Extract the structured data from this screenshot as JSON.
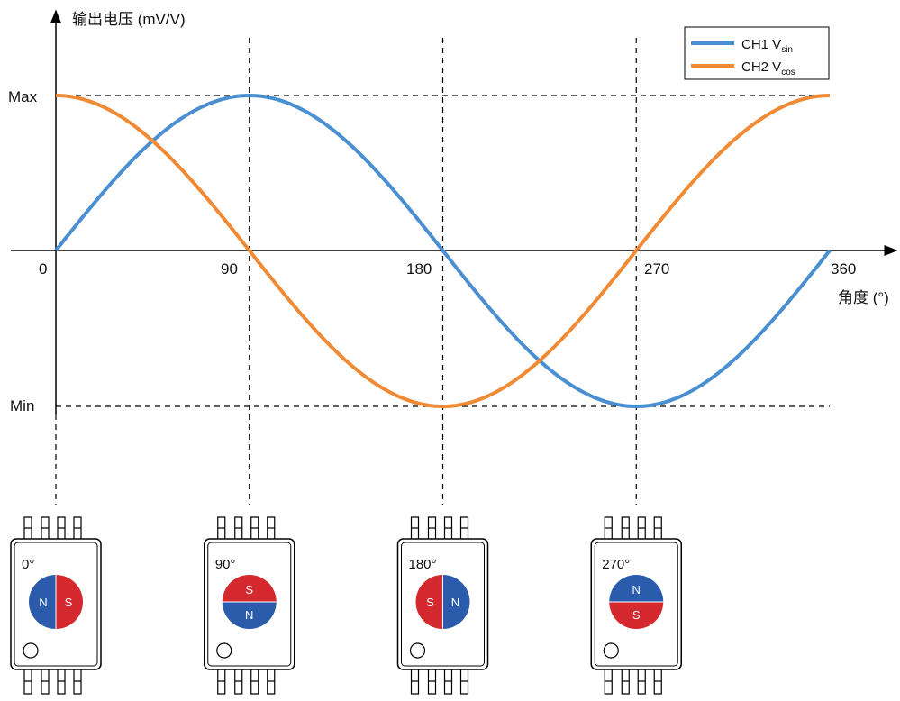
{
  "chart_data": {
    "type": "line",
    "ylabel": "输出电压 (mV/V)",
    "xlabel": "角度 (°)",
    "xlim": [
      0,
      360
    ],
    "ylim": [
      -1,
      1
    ],
    "x_ticks": [
      "0",
      "90",
      "180",
      "270",
      "360"
    ],
    "y_ticks": [
      "Max",
      "Min"
    ],
    "legend_position": "top-right",
    "series": [
      {
        "name_main": "CH1 V",
        "name_sub": "sin",
        "color": "#4a8fd1",
        "function": "sin",
        "x": [
          0,
          45,
          90,
          135,
          180,
          225,
          270,
          315,
          360
        ],
        "y": [
          0,
          0.707,
          1,
          0.707,
          0,
          -0.707,
          -1,
          -0.707,
          0
        ]
      },
      {
        "name_main": "CH2 V",
        "name_sub": "cos",
        "color": "#f08a35",
        "function": "cos",
        "x": [
          0,
          45,
          90,
          135,
          180,
          225,
          270,
          315,
          360
        ],
        "y": [
          1,
          0.707,
          0,
          -0.707,
          -1,
          -0.707,
          0,
          0.707,
          1
        ]
      }
    ]
  },
  "sensors": [
    {
      "label": "0°",
      "angle": 0,
      "halves": [
        {
          "letter": "N",
          "color": "#2b5cab"
        },
        {
          "letter": "S",
          "color": "#d42a2f"
        }
      ]
    },
    {
      "label": "90°",
      "angle": 90,
      "halves": [
        {
          "letter": "S",
          "color": "#d42a2f"
        },
        {
          "letter": "N",
          "color": "#2b5cab"
        }
      ]
    },
    {
      "label": "180°",
      "angle": 180,
      "halves": [
        {
          "letter": "S",
          "color": "#d42a2f"
        },
        {
          "letter": "N",
          "color": "#2b5cab"
        }
      ]
    },
    {
      "label": "270°",
      "angle": 270,
      "halves": [
        {
          "letter": "N",
          "color": "#2b5cab"
        },
        {
          "letter": "S",
          "color": "#d42a2f"
        }
      ]
    }
  ]
}
